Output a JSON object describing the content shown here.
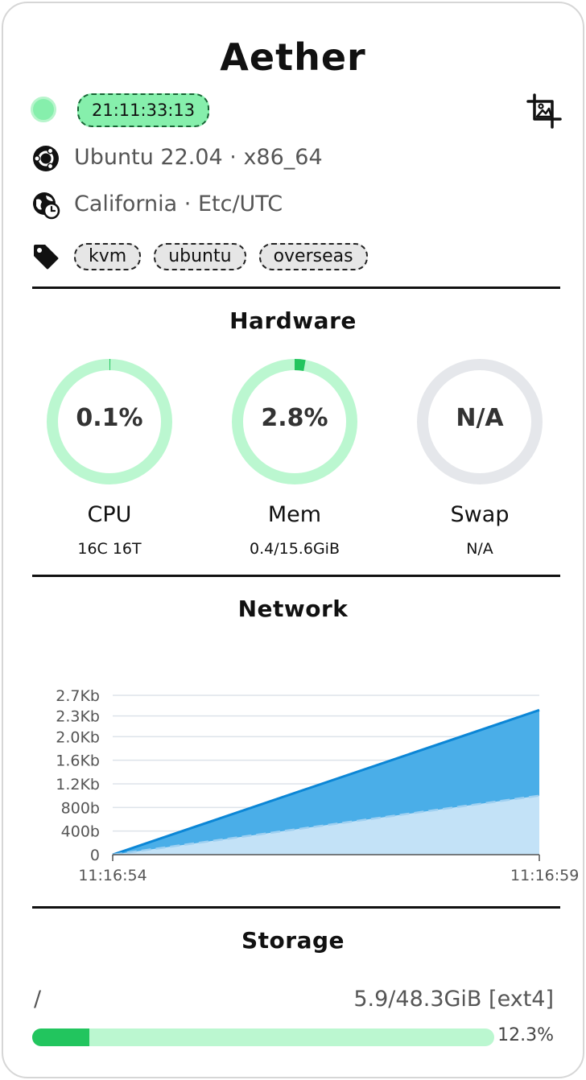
{
  "server": {
    "name": "Aether",
    "uptime": "21:11:33:13",
    "status_color": "#86efac",
    "os": "Ubuntu 22.04 · x86_64",
    "location": "California · Etc/UTC",
    "tags": [
      "kvm",
      "ubuntu",
      "overseas"
    ]
  },
  "icons": {
    "os": "ubuntu-logo-icon",
    "location": "globe-clock-icon",
    "tags": "tag-icon",
    "crop": "image-crop-icon"
  },
  "hardware": {
    "title": "Hardware",
    "gauges": [
      {
        "value_text": "0.1%",
        "percent": 0.1,
        "label": "CPU",
        "sub": "16C 16T"
      },
      {
        "value_text": "2.8%",
        "percent": 2.8,
        "label": "Mem",
        "sub": "0.4/15.6GiB"
      },
      {
        "value_text": "N/A",
        "percent": null,
        "label": "Swap",
        "sub": "N/A"
      }
    ],
    "colors": {
      "track": "#bbf7d0",
      "fill": "#22c55e",
      "na_track": "#e5e7eb"
    }
  },
  "network": {
    "title": "Network",
    "chart_data": {
      "type": "area",
      "x": [
        "11:16:54",
        "11:16:59"
      ],
      "yticks": [
        "0",
        "400b",
        "800b",
        "1.2Kb",
        "1.6Kb",
        "2.0Kb",
        "2.3Kb",
        "2.7Kb"
      ],
      "ylim": [
        0,
        2700
      ],
      "series": [
        {
          "values": [
            0,
            2450
          ],
          "color": "#4aaee8",
          "line": "#0b86d6",
          "dashed": false
        },
        {
          "values": [
            0,
            1000
          ],
          "color": "#c3e2f7",
          "line": "#9fd0f1",
          "dashed": true
        }
      ],
      "grid": true
    }
  },
  "storage": {
    "title": "Storage",
    "mount": "/",
    "size": "5.9/48.3GiB [ext4]",
    "percent_text": "12.3%",
    "percent": 12.3
  }
}
